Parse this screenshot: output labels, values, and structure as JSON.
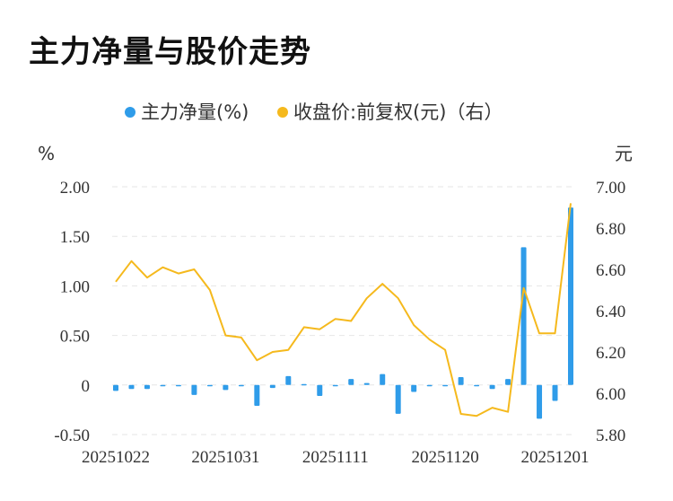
{
  "title": "主力净量与股价走势",
  "colors": {
    "bar": "#2f9ce9",
    "line": "#f5b91d",
    "grid": "#e6e6e6"
  },
  "chart_data": {
    "type": "bar+line",
    "legend": [
      {
        "name": "主力净量(%)",
        "color": "#2f9ce9",
        "icon": "circle"
      },
      {
        "name": "收盘价:前复权(元)（右）",
        "color": "#f5b91d",
        "icon": "circle"
      }
    ],
    "y_left_unit": "%",
    "y_right_unit": "元",
    "y_left_ticks": [
      "2.00",
      "1.50",
      "1.00",
      "0.50",
      "0",
      "-0.50"
    ],
    "y_right_ticks": [
      "7.00",
      "6.80",
      "6.60",
      "6.40",
      "6.20",
      "6.00",
      "5.80"
    ],
    "ylim_left": [
      -0.5,
      2.0
    ],
    "ylim_right": [
      5.8,
      7.0
    ],
    "x_ticks": [
      {
        "label": "20251022",
        "index": 0
      },
      {
        "label": "20251031",
        "index": 7
      },
      {
        "label": "20251111",
        "index": 14
      },
      {
        "label": "20251120",
        "index": 21
      },
      {
        "label": "20251201",
        "index": 28
      }
    ],
    "n_points": 30,
    "series": [
      {
        "name": "主力净量(%)",
        "type": "bar",
        "axis": "left",
        "values": [
          -0.06,
          -0.04,
          -0.04,
          -0.01,
          0.0,
          -0.1,
          -0.01,
          -0.05,
          -0.01,
          -0.21,
          -0.03,
          0.09,
          0.01,
          -0.11,
          -0.01,
          0.06,
          0.02,
          0.11,
          -0.29,
          -0.07,
          -0.01,
          -0.01,
          0.08,
          -0.01,
          -0.04,
          0.06,
          1.39,
          -0.34,
          -0.16,
          1.79
        ]
      },
      {
        "name": "收盘价:前复权(元)（右）",
        "type": "line",
        "axis": "right",
        "values": [
          6.54,
          6.64,
          6.56,
          6.61,
          6.58,
          6.6,
          6.5,
          6.28,
          6.27,
          6.16,
          6.2,
          6.21,
          6.32,
          6.31,
          6.36,
          6.35,
          6.46,
          6.53,
          6.46,
          6.33,
          6.26,
          6.21,
          5.9,
          5.89,
          5.93,
          5.91,
          6.51,
          6.29,
          6.29,
          6.92
        ]
      }
    ]
  }
}
